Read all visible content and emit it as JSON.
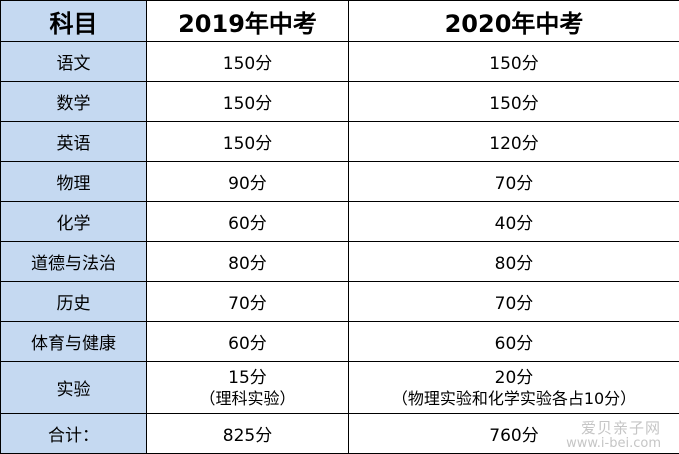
{
  "table": {
    "headers": [
      "科目",
      "2019年中考",
      "2020年中考"
    ],
    "rows": [
      {
        "subject": "语文",
        "y2019": "150分",
        "y2020": "150分"
      },
      {
        "subject": "数学",
        "y2019": "150分",
        "y2020": "150分"
      },
      {
        "subject": "英语",
        "y2019": "150分",
        "y2020": "120分"
      },
      {
        "subject": "物理",
        "y2019": "90分",
        "y2020": "70分"
      },
      {
        "subject": "化学",
        "y2019": "60分",
        "y2020": "40分"
      },
      {
        "subject": "道德与法治",
        "y2019": "80分",
        "y2020": "80分"
      },
      {
        "subject": "历史",
        "y2019": "70分",
        "y2020": "70分"
      },
      {
        "subject": "体育与健康",
        "y2019": "60分",
        "y2020": "60分"
      },
      {
        "subject": "实验",
        "y2019": "15分",
        "y2019_note": "（理科实验）",
        "y2020": "20分",
        "y2020_note": "（物理实验和化学实验各占10分）"
      },
      {
        "subject": "合计：",
        "y2019": "825分",
        "y2020": "760分"
      }
    ]
  },
  "watermark": {
    "line1": "爱贝亲子网",
    "line2": "www.i-bei.com"
  },
  "colors": {
    "header_fill": "#c5d9f1",
    "border": "#000000"
  }
}
